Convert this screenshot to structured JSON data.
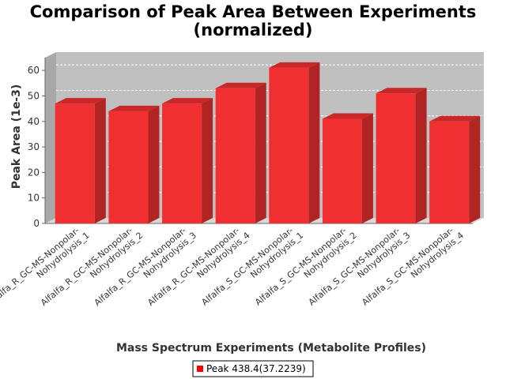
{
  "chart_data": {
    "type": "bar",
    "title_line1": "Comparison of Peak Area Between Experiments",
    "title_line2": "(normalized)",
    "xlabel": "Mass Spectrum Experiments (Metabolite Profiles)",
    "ylabel": "Peak Area (1e-3)",
    "ylim": [
      0,
      65
    ],
    "yticks": [
      0,
      10,
      20,
      30,
      40,
      50,
      60
    ],
    "grid": true,
    "categories": [
      [
        "Alfalfa_R_GC-MS-Nonpolar-",
        "Nohydrolysis_1"
      ],
      [
        "Alfalfa_R_GC-MS-Nonpolar-",
        "Nohydrolysis_2"
      ],
      [
        "Alfalfa_R_GC-MS-Nonpolar-",
        "Nohydrolysis_3"
      ],
      [
        "Alfalfa_R_GC-MS-Nonpolar-",
        "Nohydrolysis_4"
      ],
      [
        "Alfalfa_S_GC-MS-Nonpolar-",
        "Nohydrolysis_1"
      ],
      [
        "Alfalfa_S_GC-MS-Nonpolar-",
        "Nohydrolysis_2"
      ],
      [
        "Alfalfa_S_GC-MS-Nonpolar-",
        "Nohydrolysis_3"
      ],
      [
        "Alfalfa_S_GC-MS-Nonpolar-",
        "Nohydrolysis_4"
      ]
    ],
    "series": [
      {
        "name": "Peak 438.4(37.2239)",
        "values": [
          47,
          44,
          47,
          53,
          61,
          41,
          51,
          40
        ]
      }
    ],
    "colors": {
      "bar": "#f03030",
      "bar_top": "#c82828",
      "bar_side": "#b02424",
      "plot_bg": "#c0c0c0"
    },
    "legend_position": "bottom"
  }
}
